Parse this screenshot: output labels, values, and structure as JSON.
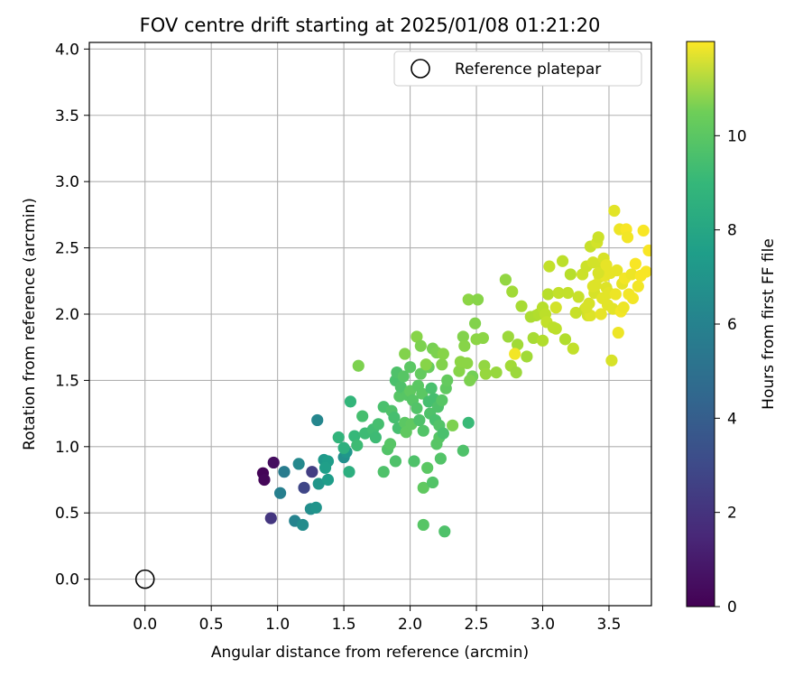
{
  "chart_data": {
    "type": "scatter",
    "title": "FOV centre drift starting at 2025/01/08 01:21:20",
    "xlabel": "Angular distance from reference (arcmin)",
    "ylabel": "Rotation from reference (arcmin)",
    "xlim": [
      -0.42,
      3.82
    ],
    "ylim": [
      -0.2,
      4.05
    ],
    "xticks": [
      "0.0",
      "0.5",
      "1.0",
      "1.5",
      "2.0",
      "2.5",
      "3.0",
      "3.5"
    ],
    "xtick_values": [
      0,
      0.5,
      1,
      1.5,
      2,
      2.5,
      3,
      3.5
    ],
    "yticks": [
      "0.0",
      "0.5",
      "1.0",
      "1.5",
      "2.0",
      "2.5",
      "3.0",
      "3.5",
      "4.0"
    ],
    "ytick_values": [
      0,
      0.5,
      1,
      1.5,
      2,
      2.5,
      3,
      3.5,
      4
    ],
    "grid": true,
    "legend": {
      "position": "upper-right",
      "entries": [
        "Reference platepar"
      ]
    },
    "colorbar": {
      "label": "Hours from first FF file",
      "colormap": "viridis",
      "range": [
        0,
        12
      ],
      "ticks": [
        "0",
        "2",
        "4",
        "6",
        "8",
        "10"
      ],
      "tick_values": [
        0,
        2,
        4,
        6,
        8,
        10
      ]
    },
    "reference_point": {
      "x": 0,
      "y": 0
    },
    "series": [
      {
        "points": [
          [
            0.89,
            0.8,
            0.1
          ],
          [
            0.9,
            0.75,
            0.2
          ],
          [
            0.97,
            0.88,
            0.4
          ],
          [
            0.95,
            0.46,
            1.9
          ],
          [
            1.26,
            0.81,
            2.2
          ],
          [
            1.2,
            0.69,
            2.5
          ],
          [
            1.05,
            0.81,
            5.0
          ],
          [
            1.02,
            0.65,
            5.2
          ],
          [
            1.16,
            0.87,
            5.6
          ],
          [
            1.13,
            0.44,
            5.4
          ],
          [
            1.19,
            0.41,
            5.8
          ],
          [
            1.25,
            0.53,
            5.9
          ],
          [
            1.29,
            0.54,
            6.2
          ],
          [
            1.3,
            1.2,
            5.5
          ],
          [
            1.31,
            0.72,
            6.3
          ],
          [
            1.35,
            0.9,
            6.4
          ],
          [
            1.38,
            0.89,
            6.6
          ],
          [
            1.38,
            0.75,
            6.6
          ],
          [
            1.36,
            0.84,
            6.7
          ],
          [
            1.5,
            0.92,
            6.0
          ],
          [
            1.52,
            0.96,
            6.4
          ],
          [
            1.46,
            1.07,
            7.8
          ],
          [
            1.5,
            0.99,
            7.6
          ],
          [
            1.54,
            0.81,
            7.5
          ],
          [
            1.55,
            1.34,
            7.9
          ],
          [
            1.58,
            1.08,
            8.0
          ],
          [
            1.6,
            1.01,
            8.2
          ],
          [
            1.64,
            1.23,
            8.4
          ],
          [
            1.66,
            1.1,
            8.2
          ],
          [
            1.72,
            1.13,
            8.3
          ],
          [
            1.74,
            1.07,
            8.2
          ],
          [
            1.76,
            1.17,
            8.4
          ],
          [
            1.8,
            1.3,
            8.5
          ],
          [
            1.8,
            0.81,
            8.6
          ],
          [
            1.83,
            0.98,
            8.7
          ],
          [
            1.85,
            1.02,
            8.8
          ],
          [
            1.86,
            1.27,
            8.6
          ],
          [
            1.88,
            1.22,
            8.4
          ],
          [
            1.89,
            1.5,
            8.5
          ],
          [
            1.89,
            0.89,
            8.6
          ],
          [
            1.9,
            1.56,
            8.6
          ],
          [
            1.91,
            1.14,
            8.4
          ],
          [
            1.92,
            1.38,
            8.8
          ],
          [
            1.93,
            1.45,
            8.6
          ],
          [
            1.95,
            1.53,
            8.8
          ],
          [
            1.96,
            1.18,
            8.9
          ],
          [
            1.97,
            1.11,
            9.0
          ],
          [
            1.98,
            1.39,
            8.8
          ],
          [
            2.0,
            1.6,
            8.9
          ],
          [
            2.0,
            1.42,
            9.0
          ],
          [
            2.01,
            1.17,
            9.0
          ],
          [
            2.02,
            1.35,
            8.8
          ],
          [
            2.03,
            0.89,
            8.6
          ],
          [
            2.05,
            1.29,
            8.7
          ],
          [
            2.06,
            1.46,
            8.9
          ],
          [
            2.07,
            1.2,
            8.6
          ],
          [
            2.08,
            1.55,
            9.1
          ],
          [
            2.09,
            1.4,
            8.9
          ],
          [
            2.1,
            1.12,
            8.7
          ],
          [
            2.1,
            0.41,
            8.8
          ],
          [
            2.1,
            0.69,
            9.0
          ],
          [
            2.13,
            0.84,
            8.9
          ],
          [
            2.14,
            1.34,
            8.4
          ],
          [
            2.14,
            1.6,
            9.2
          ],
          [
            2.15,
            1.25,
            8.6
          ],
          [
            2.16,
            1.44,
            8.5
          ],
          [
            2.17,
            0.73,
            8.7
          ],
          [
            2.18,
            1.36,
            8.4
          ],
          [
            2.19,
            1.2,
            8.5
          ],
          [
            2.2,
            1.02,
            8.8
          ],
          [
            2.21,
            1.3,
            8.6
          ],
          [
            2.22,
            1.16,
            8.7
          ],
          [
            2.22,
            1.07,
            8.8
          ],
          [
            2.23,
            0.91,
            8.7
          ],
          [
            2.24,
            1.35,
            8.8
          ],
          [
            2.25,
            1.1,
            8.5
          ],
          [
            2.26,
            0.36,
            8.6
          ],
          [
            2.27,
            1.44,
            9.0
          ],
          [
            2.28,
            1.5,
            9.1
          ],
          [
            2.32,
            1.16,
            9.6
          ],
          [
            2.4,
            0.97,
            8.6
          ],
          [
            2.44,
            1.18,
            8.1
          ],
          [
            2.47,
            1.53,
            9.4
          ],
          [
            1.61,
            1.61,
            9.6
          ],
          [
            1.96,
            1.7,
            9.7
          ],
          [
            2.05,
            1.83,
            9.8
          ],
          [
            2.08,
            1.76,
            9.6
          ],
          [
            2.12,
            1.62,
            9.8
          ],
          [
            2.17,
            1.74,
            9.5
          ],
          [
            2.2,
            1.71,
            9.6
          ],
          [
            2.24,
            1.62,
            9.7
          ],
          [
            2.25,
            1.7,
            9.8
          ],
          [
            2.37,
            1.57,
            9.8
          ],
          [
            2.38,
            1.64,
            9.9
          ],
          [
            2.4,
            1.83,
            9.7
          ],
          [
            2.41,
            1.76,
            9.8
          ],
          [
            2.43,
            1.63,
            9.9
          ],
          [
            2.44,
            2.11,
            9.9
          ],
          [
            2.45,
            1.5,
            9.6
          ],
          [
            2.49,
            1.93,
            9.7
          ],
          [
            2.5,
            1.81,
            9.9
          ],
          [
            2.51,
            2.11,
            9.8
          ],
          [
            2.55,
            1.82,
            9.9
          ],
          [
            2.56,
            1.61,
            10.0
          ],
          [
            2.57,
            1.55,
            10.1
          ],
          [
            2.65,
            1.56,
            10.1
          ],
          [
            2.72,
            2.26,
            10.0
          ],
          [
            2.74,
            1.83,
            10.2
          ],
          [
            2.76,
            1.61,
            10.3
          ],
          [
            2.77,
            2.17,
            10.3
          ],
          [
            2.8,
            1.56,
            10.2
          ],
          [
            2.81,
            1.77,
            10.3
          ],
          [
            2.84,
            2.06,
            10.4
          ],
          [
            2.88,
            1.68,
            10.3
          ],
          [
            2.91,
            1.98,
            10.5
          ],
          [
            2.93,
            1.82,
            10.4
          ],
          [
            2.95,
            1.99,
            10.5
          ],
          [
            2.97,
            2.0,
            10.6
          ],
          [
            3.0,
            1.8,
            10.6
          ],
          [
            3.0,
            2.05,
            10.7
          ],
          [
            3.02,
            2.0,
            10.8
          ],
          [
            3.03,
            1.94,
            10.9
          ],
          [
            3.04,
            2.15,
            10.7
          ],
          [
            3.05,
            2.36,
            10.9
          ],
          [
            3.08,
            1.9,
            10.8
          ],
          [
            3.1,
            1.89,
            10.8
          ],
          [
            3.12,
            2.16,
            10.9
          ],
          [
            3.15,
            2.4,
            10.8
          ],
          [
            3.17,
            1.81,
            10.6
          ],
          [
            3.19,
            2.16,
            10.9
          ],
          [
            3.21,
            2.3,
            10.7
          ],
          [
            3.23,
            1.74,
            10.9
          ],
          [
            3.25,
            2.01,
            11.0
          ],
          [
            3.27,
            2.13,
            11.0
          ],
          [
            3.3,
            2.3,
            11.1
          ],
          [
            3.32,
            2.04,
            11.0
          ],
          [
            3.33,
            2.36,
            11.1
          ],
          [
            3.34,
            1.99,
            11.2
          ],
          [
            3.35,
            2.08,
            11.3
          ],
          [
            3.36,
            2.51,
            11.0
          ],
          [
            3.38,
            2.39,
            11.2
          ],
          [
            3.39,
            2.16,
            11.3
          ],
          [
            3.4,
            2.22,
            11.4
          ],
          [
            3.41,
            2.54,
            11.2
          ],
          [
            3.42,
            2.58,
            11.1
          ],
          [
            3.43,
            2.28,
            11.4
          ],
          [
            3.44,
            2.36,
            11.2
          ],
          [
            3.45,
            2.12,
            11.5
          ],
          [
            3.46,
            2.42,
            11.3
          ],
          [
            3.47,
            2.29,
            11.6
          ],
          [
            3.48,
            2.2,
            11.4
          ],
          [
            3.49,
            2.07,
            11.5
          ],
          [
            3.5,
            2.16,
            11.5
          ],
          [
            3.51,
            2.31,
            11.6
          ],
          [
            3.52,
            1.65,
            11.3
          ],
          [
            3.53,
            2.04,
            11.5
          ],
          [
            3.54,
            2.78,
            11.5
          ],
          [
            3.55,
            2.15,
            11.7
          ],
          [
            3.56,
            2.33,
            11.6
          ],
          [
            3.57,
            1.86,
            11.7
          ],
          [
            3.58,
            2.64,
            11.7
          ],
          [
            3.59,
            2.02,
            11.8
          ],
          [
            3.6,
            2.23,
            11.6
          ],
          [
            3.61,
            2.05,
            11.7
          ],
          [
            3.62,
            2.27,
            11.8
          ],
          [
            3.63,
            2.64,
            11.9
          ],
          [
            3.64,
            2.58,
            11.8
          ],
          [
            3.65,
            2.15,
            11.8
          ],
          [
            3.67,
            2.3,
            11.7
          ],
          [
            3.68,
            2.12,
            11.8
          ],
          [
            3.7,
            2.38,
            11.9
          ],
          [
            3.72,
            2.21,
            11.8
          ],
          [
            3.74,
            2.29,
            11.9
          ],
          [
            3.76,
            2.63,
            11.9
          ],
          [
            3.78,
            2.32,
            11.9
          ],
          [
            3.8,
            2.48,
            11.9
          ],
          [
            3.36,
            1.99,
            11.4
          ],
          [
            3.42,
            2.31,
            11.3
          ],
          [
            3.48,
            2.37,
            11.6
          ],
          [
            3.33,
            2.05,
            11.3
          ],
          [
            2.79,
            1.7,
            11.8
          ],
          [
            3.1,
            2.05,
            11.2
          ],
          [
            3.38,
            2.21,
            11.4
          ],
          [
            3.44,
            2.0,
            11.6
          ]
        ]
      }
    ]
  }
}
